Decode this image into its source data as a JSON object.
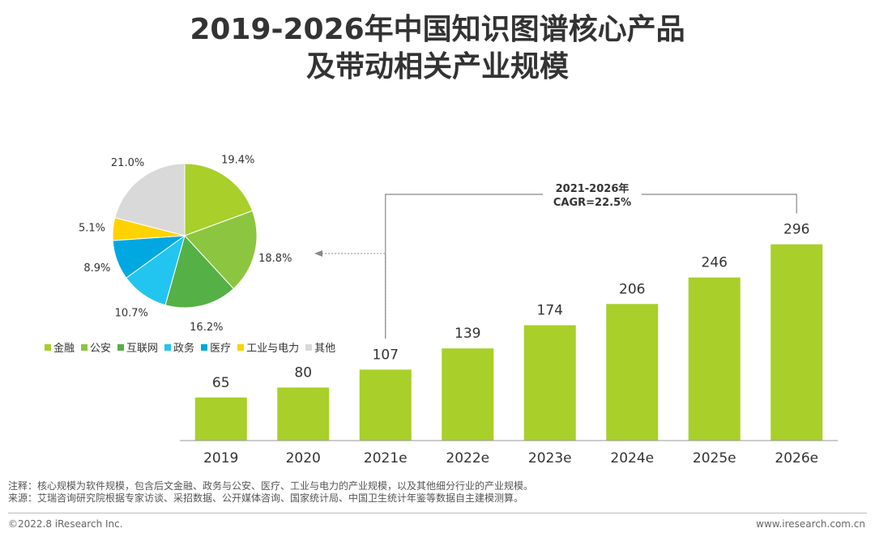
{
  "title": {
    "line1": "2019-2026年中国知识图谱核心产品",
    "line2": "及带动相关产业规模"
  },
  "chart_data": [
    {
      "type": "bar",
      "categories": [
        "2019",
        "2020",
        "2021e",
        "2022e",
        "2023e",
        "2024e",
        "2025e",
        "2026e"
      ],
      "values": [
        65,
        80,
        107,
        139,
        174,
        206,
        246,
        296
      ],
      "ylim": [
        0,
        320
      ],
      "color": "#a8cf2a",
      "annotation": {
        "line1": "2021-2026年",
        "line2": "CAGR=22.5%",
        "from": "2021e",
        "to": "2026e"
      }
    },
    {
      "type": "pie",
      "labels": [
        "金融",
        "公安",
        "互联网",
        "政务",
        "医疗",
        "工业与电力",
        "其他"
      ],
      "values": [
        19.4,
        18.8,
        16.2,
        10.7,
        8.9,
        5.1,
        21.0
      ],
      "value_labels": [
        "19.4%",
        "18.8%",
        "16.2%",
        "10.7%",
        "8.9%",
        "5.1%",
        "21.0%"
      ],
      "colors": [
        "#a8cf2a",
        "#8cc540",
        "#55b046",
        "#22c5f0",
        "#00a8e1",
        "#ffd200",
        "#d9d9d9"
      ]
    }
  ],
  "notes": {
    "line1": "注释：核心规模为软件规模，包含后文金融、政务与公安、医疗、工业与电力的产业规模，以及其他细分行业的产业规模。",
    "line2": "来源：艾瑞咨询研究院根据专家访谈、采招数据、公开媒体咨询、国家统计局、中国卫生统计年鉴等数据自主建模测算。"
  },
  "footer": {
    "copyright": "©2022.8 iResearch Inc.",
    "url": "www.iresearch.com.cn"
  }
}
